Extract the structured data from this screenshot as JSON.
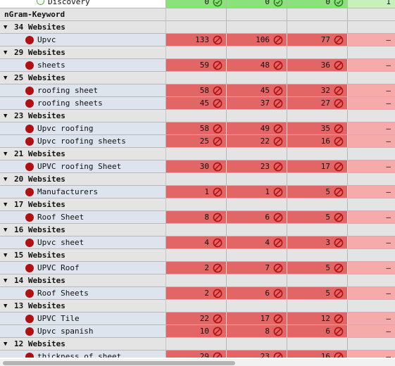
{
  "discovery": {
    "label": "Discovery",
    "values": [
      "0",
      "0",
      "0"
    ],
    "last": "1"
  },
  "header": {
    "title": "nGram-Keyword"
  },
  "colors": {
    "green": "#8be27a",
    "red": "#e36666",
    "pink": "#f7aaaa",
    "blocked_icon": "#b01010"
  },
  "icons": {
    "status_ok": "check-circle-icon",
    "status_blocked": "no-entry-icon",
    "keyword_marker": "red-dot-icon"
  },
  "empty_value": "–",
  "groups": [
    {
      "label": "34 Websites",
      "rows": [
        {
          "keyword": "Upvc",
          "values": [
            "133",
            "106",
            "77"
          ]
        }
      ]
    },
    {
      "label": "29 Websites",
      "rows": [
        {
          "keyword": "sheets",
          "values": [
            "59",
            "48",
            "36"
          ]
        }
      ]
    },
    {
      "label": "25 Websites",
      "rows": [
        {
          "keyword": "roofing sheet",
          "values": [
            "58",
            "45",
            "32"
          ]
        },
        {
          "keyword": "roofing sheets",
          "values": [
            "45",
            "37",
            "27"
          ]
        }
      ]
    },
    {
      "label": "23 Websites",
      "rows": [
        {
          "keyword": "Upvc roofing",
          "values": [
            "58",
            "49",
            "35"
          ]
        },
        {
          "keyword": "Upvc roofing sheets",
          "values": [
            "25",
            "22",
            "16"
          ]
        }
      ]
    },
    {
      "label": "21 Websites",
      "rows": [
        {
          "keyword": "UPVC roofing Sheet",
          "values": [
            "30",
            "23",
            "17"
          ]
        }
      ]
    },
    {
      "label": "20 Websites",
      "rows": [
        {
          "keyword": "Manufacturers",
          "values": [
            "1",
            "1",
            "5"
          ]
        }
      ]
    },
    {
      "label": "17 Websites",
      "rows": [
        {
          "keyword": "Roof Sheet",
          "values": [
            "8",
            "6",
            "5"
          ]
        }
      ]
    },
    {
      "label": "16 Websites",
      "rows": [
        {
          "keyword": "Upvc sheet",
          "values": [
            "4",
            "4",
            "3"
          ]
        }
      ]
    },
    {
      "label": "15 Websites",
      "rows": [
        {
          "keyword": "UPVC Roof",
          "values": [
            "2",
            "7",
            "5"
          ]
        }
      ]
    },
    {
      "label": "14 Websites",
      "rows": [
        {
          "keyword": "Roof Sheets",
          "values": [
            "2",
            "6",
            "5"
          ]
        }
      ]
    },
    {
      "label": "13 Websites",
      "rows": [
        {
          "keyword": "UPVC Tile",
          "values": [
            "22",
            "17",
            "12"
          ]
        },
        {
          "keyword": "Upvc spanish",
          "values": [
            "10",
            "8",
            "6"
          ]
        }
      ]
    },
    {
      "label": "12 Websites",
      "rows": [
        {
          "keyword": "thickness of sheet",
          "values": [
            "29",
            "23",
            "16"
          ]
        }
      ]
    }
  ]
}
